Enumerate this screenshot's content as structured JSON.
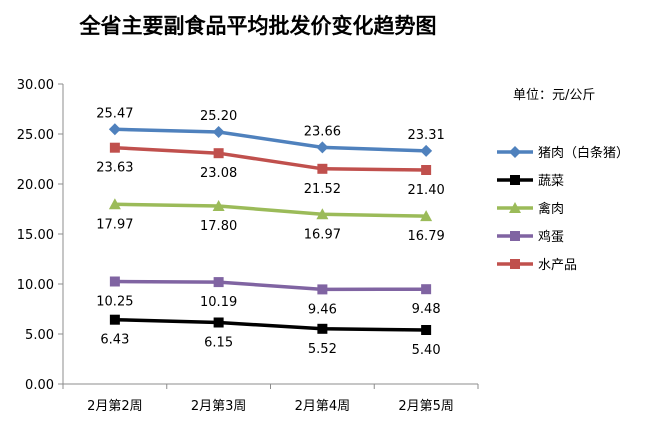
{
  "chart_data": {
    "type": "line",
    "title": "全省主要副食品平均批发价变化趋势图",
    "unit_label": "单位：元/公斤",
    "categories": [
      "2月第2周",
      "2月第3周",
      "2月第4周",
      "2月第5周"
    ],
    "ylim": [
      0,
      30
    ],
    "yticks": [
      "0.00",
      "5.00",
      "10.00",
      "15.00",
      "20.00",
      "25.00",
      "30.00"
    ],
    "grid": false,
    "legend_position": "right",
    "series": [
      {
        "name": "猪肉（白条猪）",
        "values": [
          25.47,
          25.2,
          23.66,
          23.31
        ],
        "labels": [
          "25.47",
          "25.20",
          "23.66",
          "23.31"
        ],
        "color": "#4f81bd",
        "marker": "diamond",
        "label_pos": "above"
      },
      {
        "name": "蔬菜",
        "values": [
          6.43,
          6.15,
          5.52,
          5.4
        ],
        "labels": [
          "6.43",
          "6.15",
          "5.52",
          "5.40"
        ],
        "color": "#000000",
        "marker": "square",
        "label_pos": "below"
      },
      {
        "name": "禽肉",
        "values": [
          17.97,
          17.8,
          16.97,
          16.79
        ],
        "labels": [
          "17.97",
          "17.80",
          "16.97",
          "16.79"
        ],
        "color": "#9bbb59",
        "marker": "triangle",
        "label_pos": "below"
      },
      {
        "name": "鸡蛋",
        "values": [
          10.25,
          10.19,
          9.46,
          9.48
        ],
        "labels": [
          "10.25",
          "10.19",
          "9.46",
          "9.48"
        ],
        "color": "#8064a2",
        "marker": "square",
        "label_pos": "below"
      },
      {
        "name": "水产品",
        "values": [
          23.63,
          23.08,
          21.52,
          21.4
        ],
        "labels": [
          "23.63",
          "23.08",
          "21.52",
          "21.40"
        ],
        "color": "#c0504d",
        "marker": "square",
        "label_pos": "below"
      }
    ]
  }
}
